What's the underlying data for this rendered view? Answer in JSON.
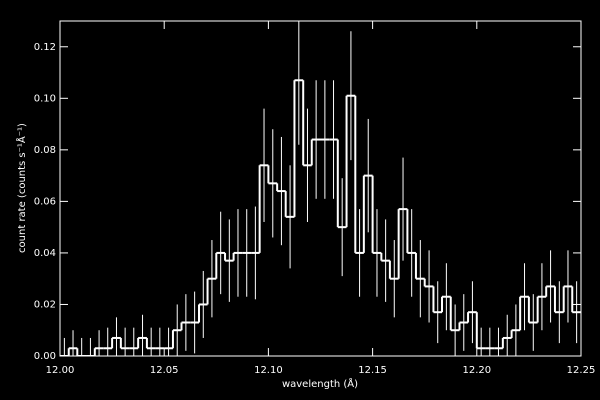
{
  "chart_data": {
    "type": "histogram",
    "xlabel": "wavelength (Å)",
    "ylabel": "count rate (counts s⁻¹Å⁻¹)",
    "bins": [
      12.0,
      12.0042,
      12.0083,
      12.0125,
      12.0167,
      12.0208,
      12.025,
      12.0292,
      12.0333,
      12.0375,
      12.0417,
      12.0458,
      12.05,
      12.0542,
      12.0583,
      12.0625,
      12.0667,
      12.0708,
      12.075,
      12.0792,
      12.0833,
      12.0875,
      12.0917,
      12.0958,
      12.1,
      12.1042,
      12.1083,
      12.1125,
      12.1167,
      12.1208,
      12.125,
      12.1292,
      12.1333,
      12.1375,
      12.1417,
      12.1458,
      12.15,
      12.1542,
      12.1583,
      12.1625,
      12.1667,
      12.1708,
      12.175,
      12.1792,
      12.1833,
      12.1875,
      12.1917,
      12.1958,
      12.2,
      12.2042,
      12.2083,
      12.2125,
      12.2167,
      12.2208,
      12.225,
      12.2292,
      12.2333,
      12.2375,
      12.2417,
      12.2458,
      12.25
    ],
    "values": [
      0,
      0.003,
      0,
      0,
      0.003,
      0.003,
      0.007,
      0.003,
      0.003,
      0.007,
      0.003,
      0.003,
      0.003,
      0.01,
      0.013,
      0.013,
      0.02,
      0.03,
      0.04,
      0.037,
      0.04,
      0.04,
      0.04,
      0.074,
      0.067,
      0.064,
      0.054,
      0.107,
      0.074,
      0.084,
      0.084,
      0.084,
      0.05,
      0.101,
      0.04,
      0.07,
      0.04,
      0.037,
      0.03,
      0.057,
      0.04,
      0.03,
      0.027,
      0.017,
      0.023,
      0.01,
      0.013,
      0.017,
      0.003,
      0.003,
      0.003,
      0.007,
      0.01,
      0.023,
      0.013,
      0.023,
      0.027,
      0.017,
      0.027,
      0.017
    ],
    "errors": [
      0.007,
      0.007,
      0.007,
      0.007,
      0.007,
      0.008,
      0.008,
      0.008,
      0.008,
      0.009,
      0.008,
      0.008,
      0.008,
      0.01,
      0.011,
      0.012,
      0.013,
      0.015,
      0.016,
      0.016,
      0.017,
      0.017,
      0.018,
      0.022,
      0.021,
      0.021,
      0.02,
      0.025,
      0.022,
      0.023,
      0.023,
      0.023,
      0.019,
      0.025,
      0.017,
      0.022,
      0.017,
      0.016,
      0.015,
      0.02,
      0.017,
      0.015,
      0.014,
      0.012,
      0.013,
      0.01,
      0.011,
      0.012,
      0.008,
      0.008,
      0.008,
      0.009,
      0.01,
      0.013,
      0.011,
      0.013,
      0.014,
      0.012,
      0.014,
      0.012
    ],
    "color": "#ffffff",
    "xlim": [
      12.0,
      12.25
    ],
    "ylim": [
      0,
      0.13
    ],
    "xticks": [
      {
        "value": 12.0,
        "label": "12.00"
      },
      12.05,
      {
        "value": 12.1,
        "label": "12.10"
      },
      12.15,
      {
        "value": 12.2,
        "label": "12.20"
      },
      12.25
    ],
    "yticks": [
      {
        "value": 0,
        "label": "0.00"
      },
      0.02,
      0.04,
      0.06,
      0.08,
      {
        "value": 0.1,
        "label": "0.10"
      },
      0.12
    ]
  }
}
